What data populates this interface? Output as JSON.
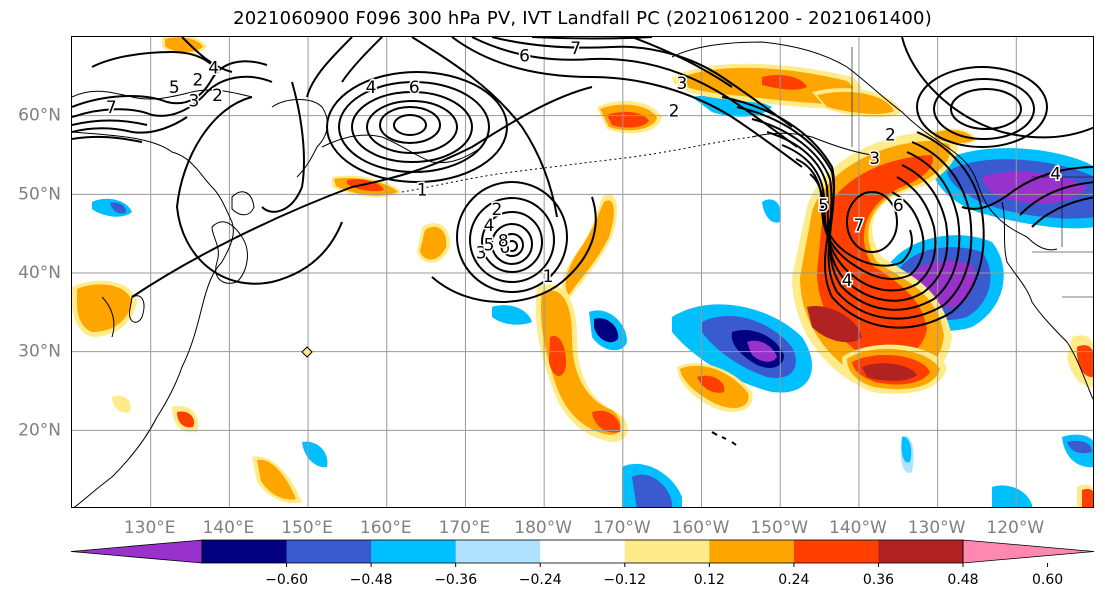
{
  "title": "2021060900 F096 300 hPa PV, IVT Landfall PC (2021061200 - 2021061400)",
  "map": {
    "lon_min": 120,
    "lon_max": 250,
    "lat_min": 10,
    "lat_max": 70,
    "lat_ticks": [
      {
        "lat": 60,
        "label": "60°N"
      },
      {
        "lat": 50,
        "label": "50°N"
      },
      {
        "lat": 40,
        "label": "40°N"
      },
      {
        "lat": 30,
        "label": "30°N"
      },
      {
        "lat": 20,
        "label": "20°N"
      }
    ],
    "lon_ticks": [
      {
        "lon": 130,
        "label": "130°E"
      },
      {
        "lon": 140,
        "label": "140°E"
      },
      {
        "lon": 150,
        "label": "150°E"
      },
      {
        "lon": 160,
        "label": "160°E"
      },
      {
        "lon": 170,
        "label": "170°E"
      },
      {
        "lon": 180,
        "label": "180°W"
      },
      {
        "lon": 190,
        "label": "170°W"
      },
      {
        "lon": 200,
        "label": "160°W"
      },
      {
        "lon": 210,
        "label": "150°W"
      },
      {
        "lon": 220,
        "label": "140°W"
      },
      {
        "lon": 230,
        "label": "130°W"
      },
      {
        "lon": 240,
        "label": "120°W"
      }
    ],
    "contour_labels": [
      {
        "text": "7",
        "lon": 125,
        "lat": 61
      },
      {
        "text": "5",
        "lon": 133,
        "lat": 63.5
      },
      {
        "text": "2",
        "lon": 136,
        "lat": 64.5
      },
      {
        "text": "4",
        "lon": 138,
        "lat": 66
      },
      {
        "text": "3",
        "lon": 135.5,
        "lat": 61.8
      },
      {
        "text": "2",
        "lon": 138.5,
        "lat": 62.5
      },
      {
        "text": "4",
        "lon": 158,
        "lat": 63.5
      },
      {
        "text": "6",
        "lon": 163.5,
        "lat": 63.5
      },
      {
        "text": "6",
        "lon": 177.5,
        "lat": 67.5
      },
      {
        "text": "7",
        "lon": 184,
        "lat": 68.5
      },
      {
        "text": "3",
        "lon": 197.5,
        "lat": 64
      },
      {
        "text": "2",
        "lon": 196.5,
        "lat": 60.5
      },
      {
        "text": "1",
        "lon": 164.5,
        "lat": 50.5
      },
      {
        "text": "2",
        "lon": 174,
        "lat": 48
      },
      {
        "text": "4",
        "lon": 173,
        "lat": 46
      },
      {
        "text": "3",
        "lon": 172,
        "lat": 42.5
      },
      {
        "text": "5",
        "lon": 173,
        "lat": 43.5
      },
      {
        "text": "6",
        "lon": 175,
        "lat": 43.2
      },
      {
        "text": "8",
        "lon": 174.8,
        "lat": 44
      },
      {
        "text": "1",
        "lon": 180.5,
        "lat": 39.5
      },
      {
        "text": "2",
        "lon": 224,
        "lat": 57.5
      },
      {
        "text": "3",
        "lon": 222,
        "lat": 54.5
      },
      {
        "text": "5",
        "lon": 215.5,
        "lat": 48.5
      },
      {
        "text": "6",
        "lon": 225,
        "lat": 48.5
      },
      {
        "text": "7",
        "lon": 220,
        "lat": 46
      },
      {
        "text": "4",
        "lon": 218.5,
        "lat": 39
      },
      {
        "text": "4",
        "lon": 245,
        "lat": 52.5
      }
    ]
  },
  "colorbar": {
    "colors": [
      "#9932CC",
      "#000080",
      "#3A5BCF",
      "#00BFFF",
      "#B0E2FF",
      "#FFFFFF",
      "#FFEB8A",
      "#FFA500",
      "#FF3F00",
      "#B22222",
      "#FF88B0"
    ],
    "tick_labels": [
      "−0.60",
      "−0.48",
      "−0.36",
      "−0.24",
      "−0.12",
      "0.12",
      "0.24",
      "0.36",
      "0.48",
      "0.60"
    ]
  }
}
